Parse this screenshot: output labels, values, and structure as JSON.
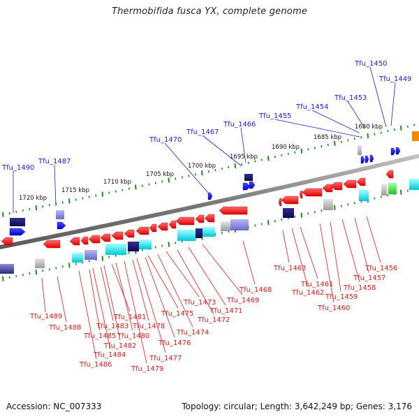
{
  "title": "Thermobifida fusca YX, complete genome",
  "footer": {
    "accession": "Accession: NC_007333",
    "stats": "Topology: circular; Length: 3,642,249 bp; Genes: 3,176"
  },
  "colors": {
    "forward_label": "#1a1adc",
    "reverse_label": "#dc1a1a",
    "backbone": "#888888",
    "tick": "#1e8a1e"
  },
  "kbp_ticks": [
    "1720 kbp",
    "1715 kbp",
    "1710 kbp",
    "1705 kbp",
    "1700 kbp",
    "1695 kbp",
    "1690 kbp",
    "1685 kbp",
    "1680 kbp"
  ],
  "forward_labels": [
    "Tfu_1490",
    "Tfu_1487",
    "Tfu_1470",
    "Tfu_1467",
    "Tfu_1466",
    "Tfu_1455",
    "Tfu_1454",
    "Tfu_1453",
    "Tfu_1450",
    "Tfu_1449"
  ],
  "reverse_labels": [
    "Tfu_1489",
    "Tfu_1488",
    "Tfu_1486",
    "Tfu_1485",
    "Tfu_1484",
    "Tfu_1483",
    "Tfu_1482",
    "Tfu_1481",
    "Tfu_1480",
    "Tfu_1479",
    "Tfu_1478",
    "Tfu_1477",
    "Tfu_1476",
    "Tfu_1475",
    "Tfu_1474",
    "Tfu_1473",
    "Tfu_1472",
    "Tfu_1471",
    "Tfu_1469",
    "Tfu_1468",
    "Tfu_1463",
    "Tfu_1462",
    "Tfu_1461",
    "Tfu_1460",
    "Tfu_1459",
    "Tfu_1458",
    "Tfu_1457",
    "Tfu_1456"
  ]
}
